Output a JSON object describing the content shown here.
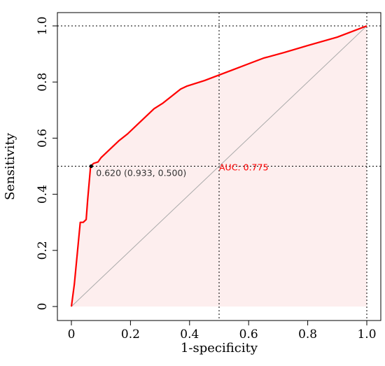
{
  "chart_data": {
    "type": "line",
    "xlabel": "1-specificity",
    "ylabel": "Sensitivity",
    "xlim": [
      0,
      1
    ],
    "ylim": [
      0,
      1
    ],
    "x_ticks": [
      "0",
      "0.2",
      "0.4",
      "0.6",
      "0.8",
      "1.0"
    ],
    "y_ticks": [
      "0",
      "0.2",
      "0.4",
      "0.6",
      "0.8",
      "1.0"
    ],
    "grid": "dotted lines at 0.5 and 1.0",
    "colors": {
      "curve": "#ff0000",
      "fill": "#fdeeee",
      "diagonal": "#aaaaaa",
      "auc_text": "#ff0000",
      "threshold_text": "#333333"
    },
    "series": [
      {
        "x": [
          0,
          0.01,
          0.02,
          0.03,
          0.04,
          0.05,
          0.055,
          0.06,
          0.065,
          0.075,
          0.09,
          0.1,
          0.13,
          0.16,
          0.19,
          0.22,
          0.25,
          0.265,
          0.28,
          0.31,
          0.34,
          0.37,
          0.39,
          0.45,
          0.5,
          0.55,
          0.6,
          0.65,
          0.72,
          0.8,
          0.9,
          1.0
        ],
        "y": [
          0,
          0.08,
          0.19,
          0.3,
          0.3,
          0.31,
          0.38,
          0.44,
          0.5,
          0.51,
          0.515,
          0.53,
          0.56,
          0.59,
          0.615,
          0.645,
          0.675,
          0.69,
          0.705,
          0.725,
          0.75,
          0.775,
          0.785,
          0.805,
          0.825,
          0.845,
          0.865,
          0.885,
          0.905,
          0.93,
          0.96,
          1.0
        ]
      }
    ],
    "diagonal": [
      [
        0,
        0
      ],
      [
        1,
        1
      ]
    ],
    "threshold_point": {
      "x": 0.067,
      "y": 0.5,
      "label": "0.620 (0.933, 0.500)"
    },
    "auc_label": "AUC: 0.775"
  }
}
